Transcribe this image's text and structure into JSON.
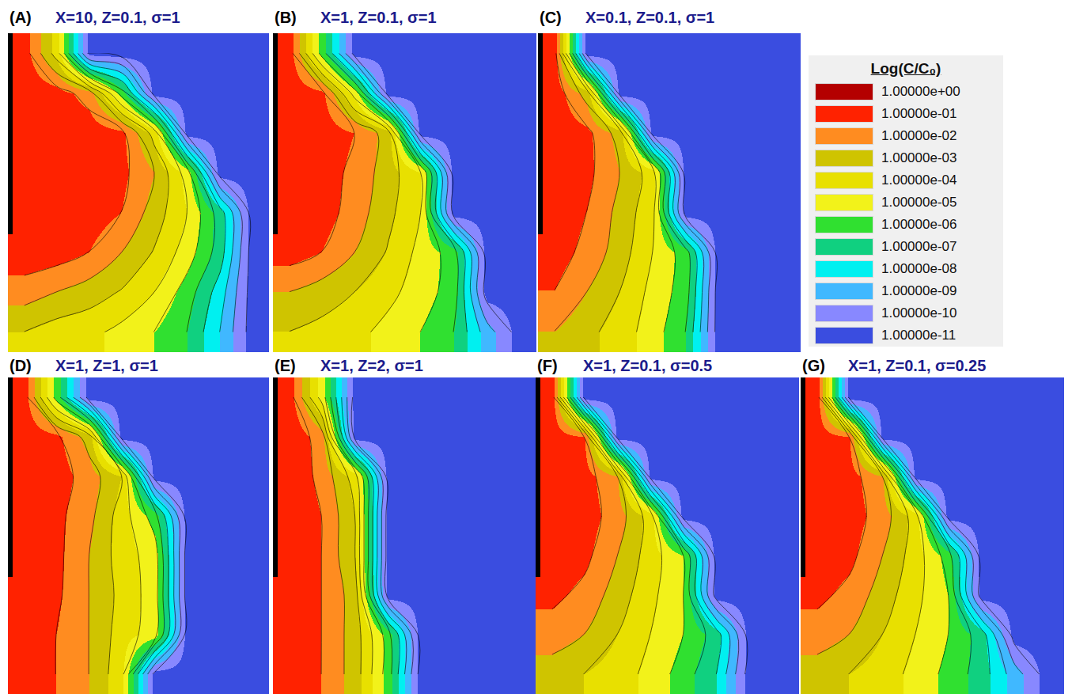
{
  "color_bar": {
    "title": "Log(C/C₀)",
    "range": [
      1e-11,
      1
    ],
    "ticks": [
      {
        "value": 1,
        "label": "1.00000e+00"
      },
      {
        "value": 0.1,
        "label": "1.00000e-01"
      },
      {
        "value": 0.01,
        "label": "1.00000e-02"
      },
      {
        "value": 0.001,
        "label": "1.00000e-03"
      },
      {
        "value": 0.0001,
        "label": "1.00000e-04"
      },
      {
        "value": 1e-05,
        "label": "1.00000e-05"
      },
      {
        "value": 1e-06,
        "label": "1.00000e-06"
      },
      {
        "value": 1e-07,
        "label": "1.00000e-07"
      },
      {
        "value": 1e-08,
        "label": "1.00000e-08"
      },
      {
        "value": 1e-09,
        "label": "1.00000e-09"
      },
      {
        "value": 1e-10,
        "label": "1.00000e-10"
      },
      {
        "value": 1e-11,
        "label": "1.00000e-11"
      }
    ],
    "colors": [
      "#b40000",
      "#ff2200",
      "#ff8c20",
      "#cfc400",
      "#e8e000",
      "#f2f21a",
      "#30e030",
      "#10d080",
      "#00f0f0",
      "#40b8ff",
      "#8888ff",
      "#3a4de0"
    ]
  },
  "chart_data": [
    {
      "type": "heatmap",
      "label": "(A)",
      "title": "X=10, Z=0.1, σ=1",
      "log": true,
      "tick_labels": false,
      "cells": [
        [
          0.1,
          0.0001,
          1e-11,
          1e-11,
          1e-11,
          1e-11,
          1e-11,
          1e-11
        ],
        [
          0.2,
          0.1,
          0.01,
          1e-06,
          1e-11,
          1e-11,
          1e-11,
          1e-11
        ],
        [
          0.2,
          0.2,
          0.15,
          0.06,
          0.0001,
          1e-11,
          1e-11,
          1e-11
        ],
        [
          0.2,
          0.2,
          0.15,
          0.06,
          0.003,
          1e-05,
          1e-11,
          1e-11
        ],
        [
          0.2,
          0.2,
          0.12,
          0.03,
          0.001,
          3e-05,
          1e-07,
          1e-11
        ],
        [
          0.15,
          0.1,
          0.03,
          0.003,
          0.00025,
          1e-05,
          1e-07,
          1e-11
        ],
        [
          0.01,
          0.003,
          0.001,
          0.00025,
          3e-05,
          1e-06,
          1e-08,
          1e-11
        ],
        [
          0.0003,
          0.0001,
          6e-05,
          1.5e-05,
          3e-06,
          3e-07,
          3e-09,
          1e-11
        ]
      ]
    },
    {
      "type": "heatmap",
      "label": "(B)",
      "title": "X=1, Z=0.1, σ=1",
      "log": true,
      "tick_labels": false,
      "cells": [
        [
          0.1,
          1e-06,
          1e-11,
          1e-11,
          1e-11,
          1e-11,
          1e-11,
          1e-11
        ],
        [
          0.2,
          0.06,
          1e-05,
          1e-11,
          1e-11,
          1e-11,
          1e-11,
          1e-11
        ],
        [
          0.2,
          0.15,
          0.03,
          0.001,
          1e-11,
          1e-11,
          1e-11,
          1e-11
        ],
        [
          0.2,
          0.12,
          0.015,
          0.001,
          3e-05,
          1e-11,
          1e-11,
          1e-11
        ],
        [
          0.15,
          0.1,
          0.01,
          0.0006,
          3e-05,
          1e-11,
          1e-11,
          1e-11
        ],
        [
          0.1,
          0.03,
          0.003,
          0.00025,
          1.5e-05,
          1e-06,
          1e-11,
          1e-11
        ],
        [
          0.003,
          0.001,
          0.0003,
          6e-05,
          1e-05,
          1e-06,
          1e-11,
          1e-11
        ],
        [
          0.0003,
          0.00015,
          6e-05,
          1.5e-05,
          3e-06,
          3e-07,
          1e-09,
          1e-11
        ]
      ]
    },
    {
      "type": "heatmap",
      "label": "(C)",
      "title": "X=0.1, Z=0.1, σ=1",
      "log": true,
      "tick_labels": false,
      "cells": [
        [
          0.1,
          1e-11,
          1e-11,
          1e-11,
          1e-11,
          1e-11,
          1e-11,
          1e-11
        ],
        [
          0.15,
          0.001,
          1e-11,
          1e-11,
          1e-11,
          1e-11,
          1e-11,
          1e-11
        ],
        [
          0.15,
          0.06,
          0.001,
          1e-11,
          1e-11,
          1e-11,
          1e-11,
          1e-11
        ],
        [
          0.15,
          0.06,
          0.003,
          0.0001,
          1e-11,
          1e-11,
          1e-11,
          1e-11
        ],
        [
          0.15,
          0.03,
          0.0015,
          6e-05,
          1e-11,
          1e-11,
          1e-11,
          1e-11
        ],
        [
          0.1,
          0.015,
          0.001,
          3e-05,
          1e-06,
          1e-11,
          1e-11,
          1e-11
        ],
        [
          0.03,
          0.003,
          0.0003,
          1.5e-05,
          1e-06,
          1e-11,
          1e-11,
          1e-11
        ],
        [
          0.003,
          0.0006,
          0.0001,
          1e-05,
          3e-07,
          1e-11,
          1e-11,
          1e-11
        ]
      ]
    },
    {
      "type": "heatmap",
      "label": "(D)",
      "title": "X=1, Z=1, σ=1",
      "log": true,
      "tick_labels": false,
      "cells": [
        [
          0.1,
          1e-06,
          1e-11,
          1e-11,
          1e-11,
          1e-11,
          1e-11,
          1e-11
        ],
        [
          0.2,
          0.06,
          0.001,
          1e-11,
          1e-11,
          1e-11,
          1e-11,
          1e-11
        ],
        [
          0.2,
          0.1,
          0.01,
          0.0003,
          1e-11,
          1e-11,
          1e-11,
          1e-11
        ],
        [
          0.2,
          0.06,
          0.006,
          0.0001,
          1e-06,
          1e-11,
          1e-11,
          1e-11
        ],
        [
          0.2,
          0.06,
          0.003,
          0.0001,
          1e-05,
          1e-11,
          1e-11,
          1e-11
        ],
        [
          0.15,
          0.05,
          0.003,
          0.00015,
          1e-05,
          1e-11,
          1e-11,
          1e-11
        ],
        [
          0.15,
          0.03,
          0.003,
          0.0001,
          1e-05,
          1e-11,
          1e-11,
          1e-11
        ],
        [
          0.12,
          0.03,
          0.003,
          6e-05,
          1e-11,
          1e-11,
          1e-11,
          1e-11
        ]
      ]
    },
    {
      "type": "heatmap",
      "label": "(E)",
      "title": "X=1, Z=2, σ=1",
      "log": true,
      "tick_labels": false,
      "cells": [
        [
          0.1,
          1e-05,
          1e-11,
          1e-11,
          1e-11,
          1e-11,
          1e-11,
          1e-11
        ],
        [
          0.2,
          0.01,
          1e-11,
          1e-11,
          1e-11,
          1e-11,
          1e-11,
          1e-11
        ],
        [
          0.2,
          0.015,
          0.0001,
          1e-11,
          1e-11,
          1e-11,
          1e-11,
          1e-11
        ],
        [
          0.2,
          0.03,
          0.0003,
          1e-11,
          1e-11,
          1e-11,
          1e-11,
          1e-11
        ],
        [
          0.2,
          0.03,
          0.0003,
          1e-11,
          1e-11,
          1e-11,
          1e-11,
          1e-11
        ],
        [
          0.2,
          0.03,
          0.001,
          1e-11,
          1e-11,
          1e-11,
          1e-11,
          1e-11
        ],
        [
          0.2,
          0.03,
          0.001,
          1e-06,
          1e-11,
          1e-11,
          1e-11,
          1e-11
        ],
        [
          0.15,
          0.03,
          0.001,
          1e-06,
          1e-11,
          1e-11,
          1e-11,
          1e-11
        ]
      ]
    },
    {
      "type": "heatmap",
      "label": "(F)",
      "title": "X=1, Z=0.1, σ=0.5",
      "log": true,
      "tick_labels": false,
      "cells": [
        [
          0.1,
          1e-11,
          1e-11,
          1e-11,
          1e-11,
          1e-11,
          1e-11,
          1e-11
        ],
        [
          0.15,
          0.03,
          1e-11,
          1e-11,
          1e-11,
          1e-11,
          1e-11,
          1e-11
        ],
        [
          0.2,
          0.1,
          0.003,
          1e-11,
          1e-11,
          1e-11,
          1e-11,
          1e-11
        ],
        [
          0.2,
          0.1,
          0.01,
          0.0001,
          1e-11,
          1e-11,
          1e-11,
          1e-11
        ],
        [
          0.15,
          0.06,
          0.003,
          0.0001,
          3e-06,
          1e-11,
          1e-11,
          1e-11
        ],
        [
          0.06,
          0.015,
          0.001,
          6e-05,
          3e-06,
          1e-11,
          1e-11,
          1e-11
        ],
        [
          0.01,
          0.003,
          0.0003,
          3e-05,
          3e-06,
          1e-07,
          1e-11,
          1e-11
        ],
        [
          0.001,
          0.0003,
          0.0001,
          1.5e-05,
          1e-06,
          3e-08,
          1e-11,
          1e-11
        ]
      ]
    },
    {
      "type": "heatmap",
      "label": "(G)",
      "title": "X=1, Z=0.1, σ=0.25",
      "log": true,
      "tick_labels": false,
      "cells": [
        [
          0.1,
          1e-11,
          1e-11,
          1e-11,
          1e-11,
          1e-11,
          1e-11,
          1e-11
        ],
        [
          0.15,
          0.03,
          1e-11,
          1e-11,
          1e-11,
          1e-11,
          1e-11,
          1e-11
        ],
        [
          0.2,
          0.1,
          0.003,
          1e-11,
          1e-11,
          1e-11,
          1e-11,
          1e-11
        ],
        [
          0.2,
          0.1,
          0.01,
          0.0001,
          1e-11,
          1e-11,
          1e-11,
          1e-11
        ],
        [
          0.15,
          0.06,
          0.003,
          0.0001,
          1e-06,
          1e-11,
          1e-11,
          1e-11
        ],
        [
          0.06,
          0.015,
          0.001,
          6e-05,
          3e-06,
          1e-11,
          1e-11,
          1e-11
        ],
        [
          0.01,
          0.003,
          0.0003,
          3e-05,
          3e-06,
          1e-07,
          1e-11,
          1e-11
        ],
        [
          0.001,
          0.0003,
          0.0001,
          1.5e-05,
          1.5e-06,
          1e-07,
          1e-09,
          1e-11
        ]
      ]
    }
  ]
}
